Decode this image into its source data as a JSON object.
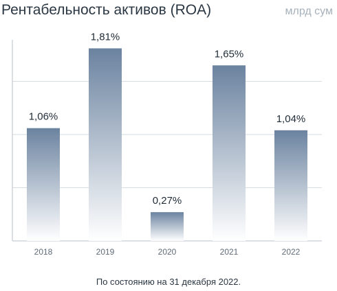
{
  "header": {
    "title": "Рентабельность активов (ROA)",
    "unit": "млрд сум"
  },
  "footnote": "По состоянию на 31 декабря 2022.",
  "colors": {
    "bar_top": "#6b83a0",
    "bar_bottom": "#ffffff",
    "grid": "#d5dbe1",
    "axis": "#b9c2cb",
    "tick_label": "#5f6b77",
    "value_label": "#1f2b36"
  },
  "chart_data": {
    "type": "bar",
    "title": "Рентабельность активов (ROA)",
    "categories": [
      "2018",
      "2019",
      "2020",
      "2021",
      "2022"
    ],
    "values": [
      1.06,
      1.81,
      0.27,
      1.65,
      1.04
    ],
    "value_labels": [
      "1,06%",
      "1,81%",
      "0,27%",
      "1,65%",
      "1,04%"
    ],
    "ylim": [
      0,
      2.0
    ],
    "grid": true,
    "legend": "none"
  }
}
